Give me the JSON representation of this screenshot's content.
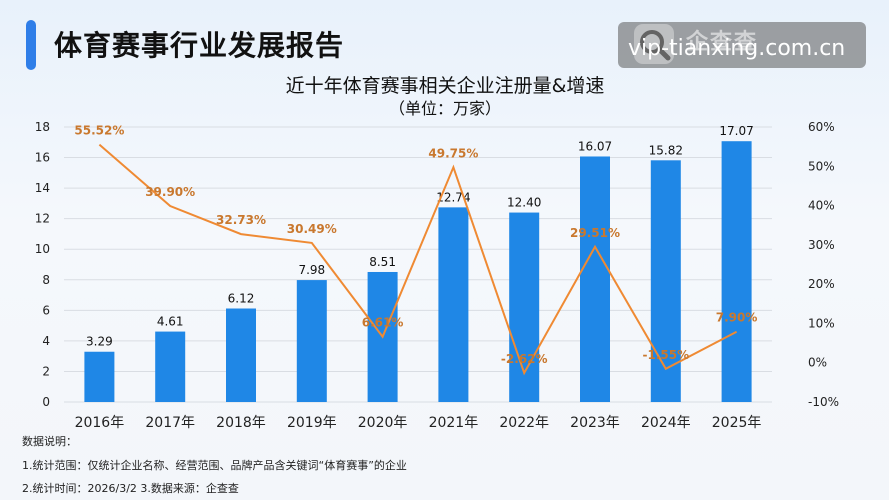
{
  "header": {
    "title": "体育赛事行业发展报告"
  },
  "watermark": {
    "url": "vip-tianxing.com.cn",
    "brand": "企查查"
  },
  "chart_data": {
    "type": "bar",
    "title": "近十年体育赛事相关企业注册量&增速",
    "subtitle": "（单位：万家）",
    "categories": [
      "2016年",
      "2017年",
      "2018年",
      "2019年",
      "2020年",
      "2021年",
      "2022年",
      "2023年",
      "2024年",
      "2025年"
    ],
    "series": [
      {
        "type": "bar",
        "values": [
          3.29,
          4.61,
          6.12,
          7.98,
          8.51,
          12.74,
          12.4,
          16.07,
          15.82,
          17.07
        ],
        "labels": [
          "3.29",
          "4.61",
          "6.12",
          "7.98",
          "8.51",
          "12.74",
          "12.40",
          "16.07",
          "15.82",
          "17.07"
        ],
        "color": "#1f87e6",
        "axis": "left"
      },
      {
        "type": "line",
        "values": [
          55.52,
          39.9,
          32.73,
          30.49,
          6.61,
          49.75,
          -2.62,
          29.51,
          -1.55,
          7.9
        ],
        "labels": [
          "55.52%",
          "39.90%",
          "32.73%",
          "30.49%",
          "6.61%",
          "49.75%",
          "-2.62%",
          "29.51%",
          "-1.55%",
          "7.90%"
        ],
        "color": "#ef8a33",
        "axis": "right"
      }
    ],
    "ylim": [
      0,
      18
    ],
    "y_ticks": [
      0,
      2,
      4,
      6,
      8,
      10,
      12,
      14,
      16,
      18
    ],
    "y2lim": [
      -10,
      60
    ],
    "y2_ticks": [
      "-10%",
      "0%",
      "10%",
      "20%",
      "30%",
      "40%",
      "50%",
      "60%"
    ],
    "grid": true
  },
  "notes": {
    "heading": "数据说明：",
    "line1": "1.统计范围：仅统计企业名称、经营范围、品牌产品含关键词“体育赛事”的企业",
    "line2": "2.统计时间：2026/3/2  3.数据来源：企查查"
  }
}
